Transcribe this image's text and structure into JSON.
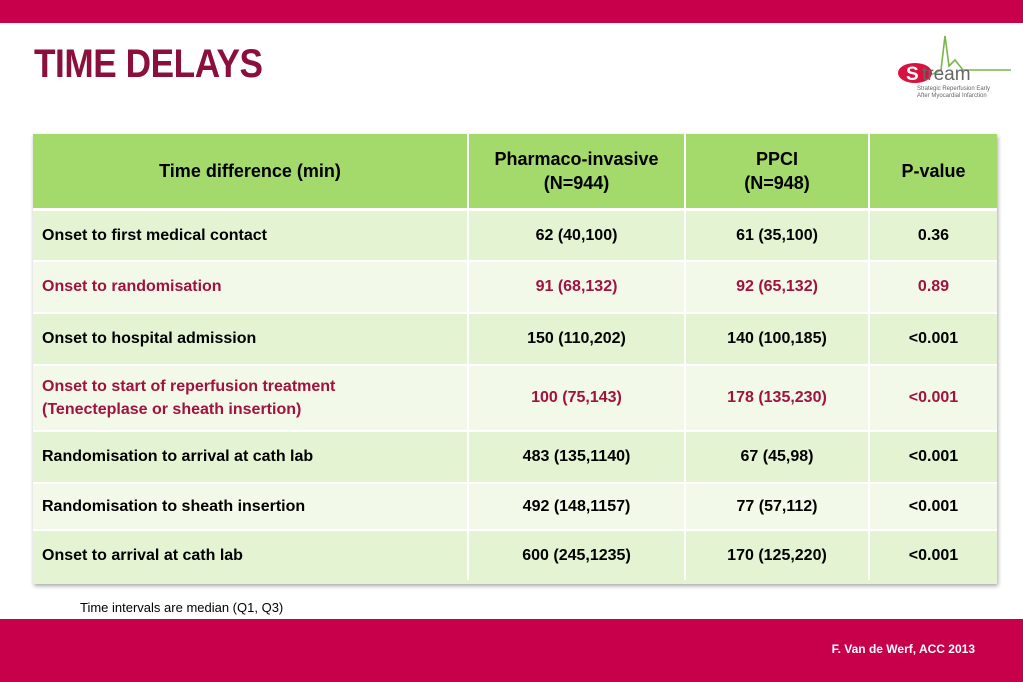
{
  "title": "TIME DELAYS",
  "logo": {
    "name": "tream",
    "initial": "S",
    "subtitle_lines": [
      "Strategic Reperfusion Early",
      "After Myocardial Infarction"
    ]
  },
  "table": {
    "headers": [
      "Time difference (min)",
      "Pharmaco-invasive\n(N=944)",
      "PPCI\n(N=948)",
      "P-value"
    ],
    "rows": [
      {
        "label": "Onset to first medical contact",
        "pi": "62 (40,100)",
        "ppci": "61 (35,100)",
        "p": "0.36",
        "highlight": false
      },
      {
        "label": "Onset to randomisation",
        "pi": "91 (68,132)",
        "ppci": "92 (65,132)",
        "p": "0.89",
        "highlight": true
      },
      {
        "label": "Onset to hospital admission",
        "pi": "150 (110,202)",
        "ppci": "140 (100,185)",
        "p": "<0.001",
        "highlight": false
      },
      {
        "label": "Onset to start of reperfusion treatment\n(Tenecteplase or sheath insertion)",
        "pi": "100 (75,143)",
        "ppci": "178 (135,230)",
        "p": "<0.001",
        "highlight": true
      },
      {
        "label": "Randomisation to arrival at cath lab",
        "pi": "483 (135,1140)",
        "ppci": "67 (45,98)",
        "p": "<0.001",
        "highlight": false
      },
      {
        "label": "Randomisation to sheath insertion",
        "pi": "492 (148,1157)",
        "ppci": "77 (57,112)",
        "p": "<0.001",
        "highlight": false
      },
      {
        "label": "Onset to arrival at cath lab",
        "pi": "600 (245,1235)",
        "ppci": "170 (125,220)",
        "p": "<0.001",
        "highlight": false
      }
    ]
  },
  "footnote": "Time intervals are median (Q1, Q3)",
  "citation": "F. Van de Werf, ACC 2013",
  "colors": {
    "brand": "#c8004b",
    "title": "#8a0f3c",
    "header_green": "#a4d96c",
    "row_light": "#f2f9e8",
    "row_dark": "#e4f3d2",
    "highlight_text": "#a0123f"
  }
}
